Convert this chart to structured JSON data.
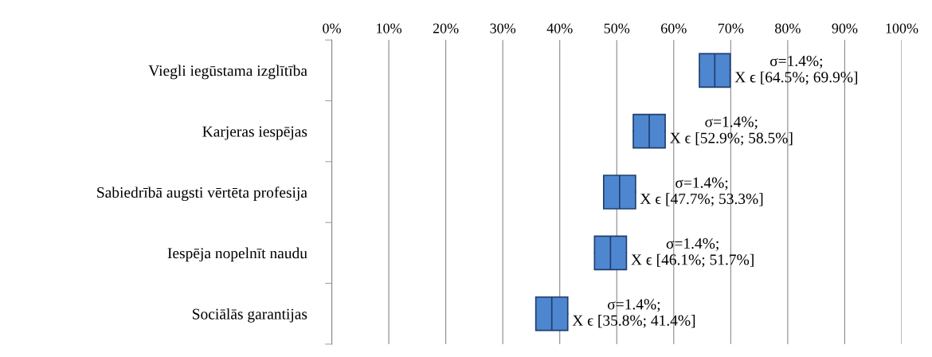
{
  "chart_data": {
    "type": "box",
    "orientation": "horizontal",
    "categories": [
      "Viegli iegūstama izglītība",
      "Karjeras iespējas",
      "Sabiedrībā augsti vērtēta profesija",
      "Iespēja nopelnīt naudu",
      "Sociālās garantijas"
    ],
    "boxes": [
      {
        "low": 64.5,
        "q1": 64.5,
        "median": 67.2,
        "q3": 69.9,
        "high": 69.9
      },
      {
        "low": 52.9,
        "q1": 52.9,
        "median": 55.7,
        "q3": 58.5,
        "high": 58.5
      },
      {
        "low": 47.7,
        "q1": 47.7,
        "median": 50.5,
        "q3": 53.3,
        "high": 53.3
      },
      {
        "low": 46.1,
        "q1": 46.1,
        "median": 48.9,
        "q3": 51.7,
        "high": 51.7
      },
      {
        "low": 35.8,
        "q1": 35.8,
        "median": 38.6,
        "q3": 41.4,
        "high": 41.4
      }
    ],
    "color": "#4f86d0",
    "xlim": [
      0,
      100
    ],
    "xticks": [
      {
        "value": 0,
        "label": "0%"
      },
      {
        "value": 10,
        "label": "10%"
      },
      {
        "value": 20,
        "label": "20%"
      },
      {
        "value": 30,
        "label": "30%"
      },
      {
        "value": 40,
        "label": "40%"
      },
      {
        "value": 50,
        "label": "50%"
      },
      {
        "value": 60,
        "label": "60%"
      },
      {
        "value": 70,
        "label": "70%"
      },
      {
        "value": 80,
        "label": "80%"
      },
      {
        "value": 90,
        "label": "90%"
      },
      {
        "value": 100,
        "label": "100%"
      }
    ],
    "grid": "x",
    "annotations": [
      {
        "text": "σ=1.4%;\nX ϵ [64.5%; 69.9%]",
        "x": 69.9,
        "y": "Viegli iegūstama izglītība"
      },
      {
        "text": "σ=1.4%;\nX ϵ [52.9%; 58.5%]",
        "x": 58.5,
        "y": "Karjeras iespējas"
      },
      {
        "text": "σ=1.4%;\nX ϵ [47.7%; 53.3%]",
        "x": 53.3,
        "y": "Sabiedrībā augsti vērtēta profesija"
      },
      {
        "text": "σ=1.4%;\nX ϵ [46.1%; 51.7%]",
        "x": 51.7,
        "y": "Iespēja nopelnīt naudu"
      },
      {
        "text": "σ=1.4%;\nX ϵ [35.8%; 41.4%]",
        "x": 41.4,
        "y": "Sociālās garantijas"
      }
    ]
  }
}
